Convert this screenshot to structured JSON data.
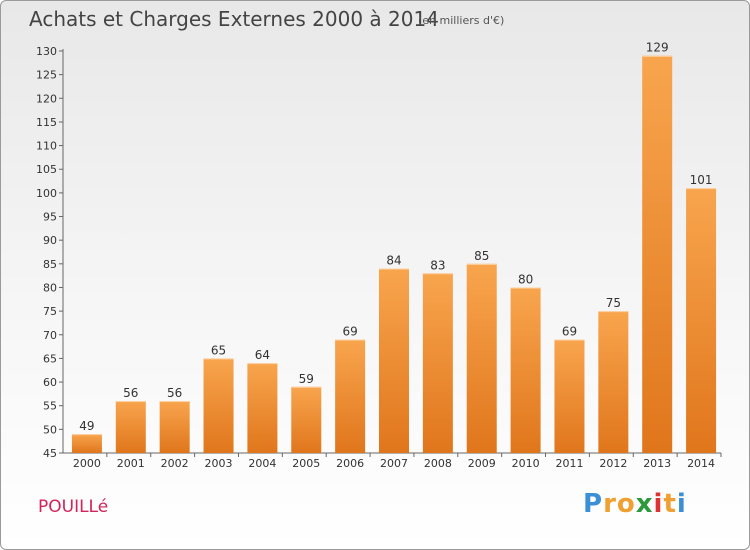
{
  "title": "Achats et Charges Externes 2000 à 2014",
  "subtitle": "(en milliers d'€)",
  "commune": "POUILLé",
  "logo": {
    "letters": [
      "P",
      "r",
      "o",
      "x",
      "i",
      "t",
      "i"
    ],
    "colors": [
      "#3a8fd6",
      "#f0a030",
      "#f0a030",
      "#2a9a3a",
      "#d33",
      "#f0a030",
      "#3a8fd6"
    ]
  },
  "colors": {
    "bar_light": "#f8a54e",
    "bar_dark": "#e0761c",
    "commune": "#d2235a"
  },
  "chart_data": {
    "type": "bar",
    "categories": [
      "2000",
      "2001",
      "2002",
      "2003",
      "2004",
      "2005",
      "2006",
      "2007",
      "2008",
      "2009",
      "2010",
      "2011",
      "2012",
      "2013",
      "2014"
    ],
    "values": [
      49,
      56,
      56,
      65,
      64,
      59,
      69,
      84,
      83,
      85,
      80,
      69,
      75,
      129,
      101
    ],
    "ylim": [
      45,
      130
    ],
    "yticks": [
      "45",
      "50",
      "55",
      "60",
      "65",
      "70",
      "75",
      "80",
      "85",
      "90",
      "95",
      "100",
      "105",
      "110",
      "115",
      "120",
      "125",
      "130"
    ],
    "grid": false
  }
}
